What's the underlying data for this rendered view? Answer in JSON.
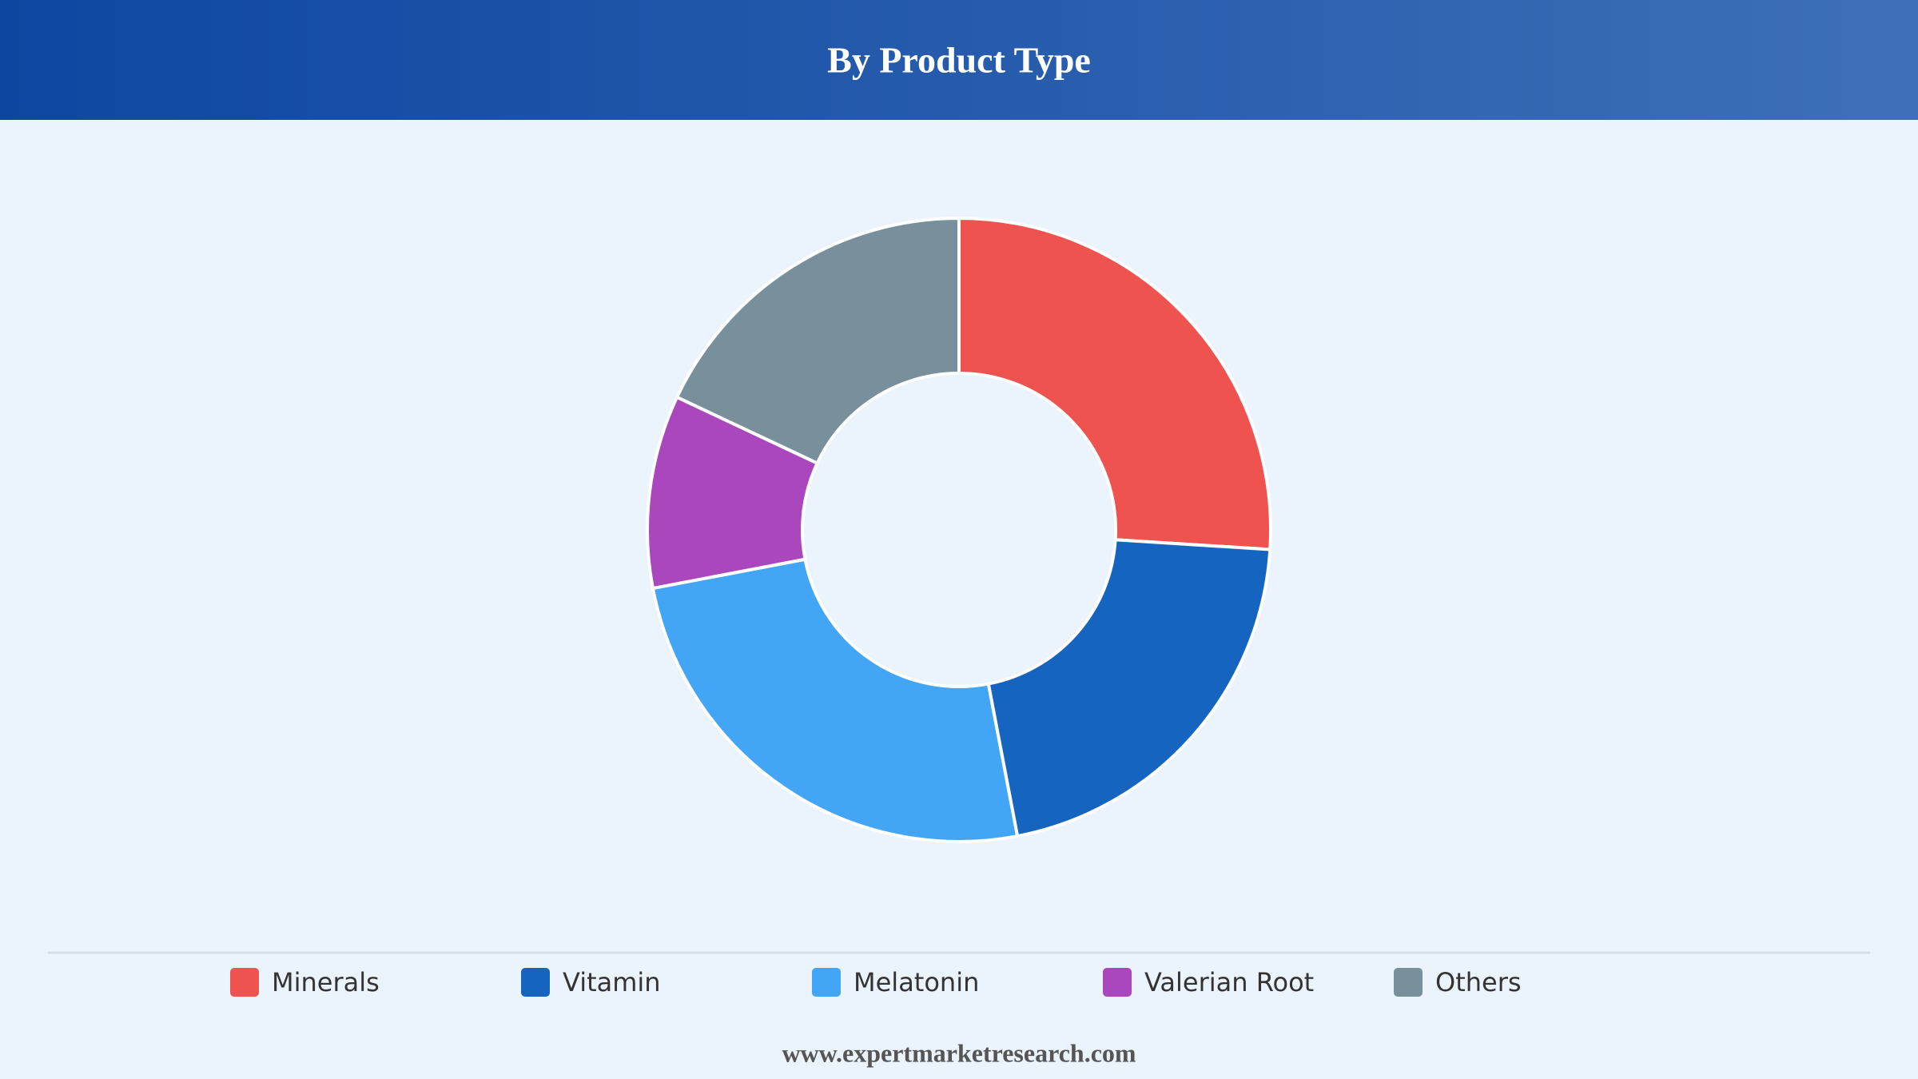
{
  "chart_data": {
    "type": "pie",
    "donut": true,
    "title": "By Product Type",
    "categories": [
      "Minerals",
      "Vitamin",
      "Melatonin",
      "Valerian Root",
      "Others"
    ],
    "values": [
      26,
      21,
      25,
      10,
      18
    ],
    "colors": [
      "#ef5350",
      "#1565c0",
      "#42a5f5",
      "#ab47bc",
      "#78909c"
    ],
    "legend": "bottom"
  },
  "footer": "www.expertmarketresearch.com"
}
